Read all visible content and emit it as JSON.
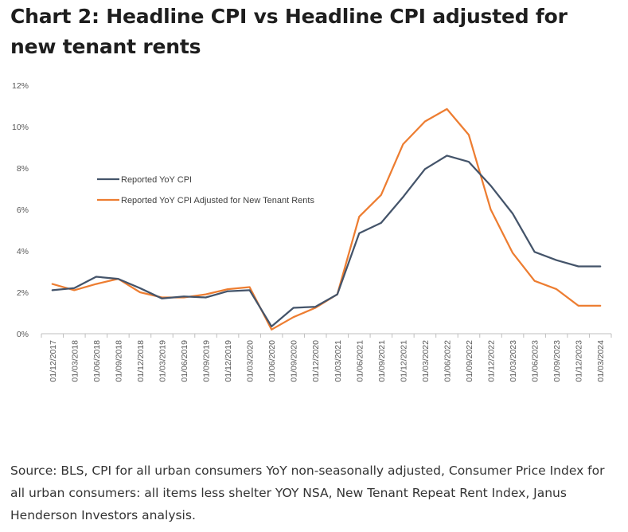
{
  "title": "Chart 2: Headline CPI vs Headline CPI adjusted for new tenant rents",
  "source_note": "Source: BLS, CPI for all urban consumers YoY non-seasonally adjusted, Consumer Price Index for all urban consumers: all items less shelter YOY NSA, New Tenant Repeat Rent Index, Janus Henderson Investors analysis.",
  "chart_data": {
    "type": "line",
    "title": "Chart 2: Headline CPI vs Headline CPI adjusted for new tenant rents",
    "xlabel": "",
    "ylabel": "",
    "ylim": [
      0,
      12
    ],
    "y_ticks": [
      0,
      2,
      4,
      6,
      8,
      10,
      12
    ],
    "y_tick_labels": [
      "0%",
      "2%",
      "4%",
      "6%",
      "8%",
      "10%",
      "12%"
    ],
    "grid": false,
    "legend_position": "upper-left",
    "x": [
      "01/12/2017",
      "01/03/2018",
      "01/06/2018",
      "01/09/2018",
      "01/12/2018",
      "01/03/2019",
      "01/06/2019",
      "01/09/2019",
      "01/12/2019",
      "01/03/2020",
      "01/06/2020",
      "01/09/2020",
      "01/12/2020",
      "01/03/2021",
      "01/06/2021",
      "01/09/2021",
      "01/12/2021",
      "01/03/2022",
      "01/06/2022",
      "01/09/2022",
      "01/12/2022",
      "01/03/2023",
      "01/06/2023",
      "01/09/2023",
      "01/12/2023",
      "01/03/2024"
    ],
    "series": [
      {
        "name": "Reported YoY CPI",
        "color": "#44546a",
        "values": [
          2.1,
          2.2,
          2.75,
          2.65,
          2.2,
          1.7,
          1.8,
          1.75,
          2.05,
          2.1,
          0.35,
          1.25,
          1.3,
          1.9,
          4.85,
          5.35,
          6.6,
          7.95,
          8.6,
          8.3,
          7.15,
          5.8,
          3.95,
          3.55,
          3.25,
          3.25
        ]
      },
      {
        "name": "Reported YoY CPI Adjusted for New Tenant Rents",
        "color": "#ed7d31",
        "values": [
          2.4,
          2.1,
          2.4,
          2.65,
          2.0,
          1.75,
          1.75,
          1.9,
          2.15,
          2.25,
          0.2,
          0.8,
          1.25,
          1.9,
          5.65,
          6.7,
          9.15,
          10.25,
          10.85,
          9.6,
          6.0,
          3.9,
          2.55,
          2.15,
          1.35,
          1.35
        ]
      }
    ]
  }
}
